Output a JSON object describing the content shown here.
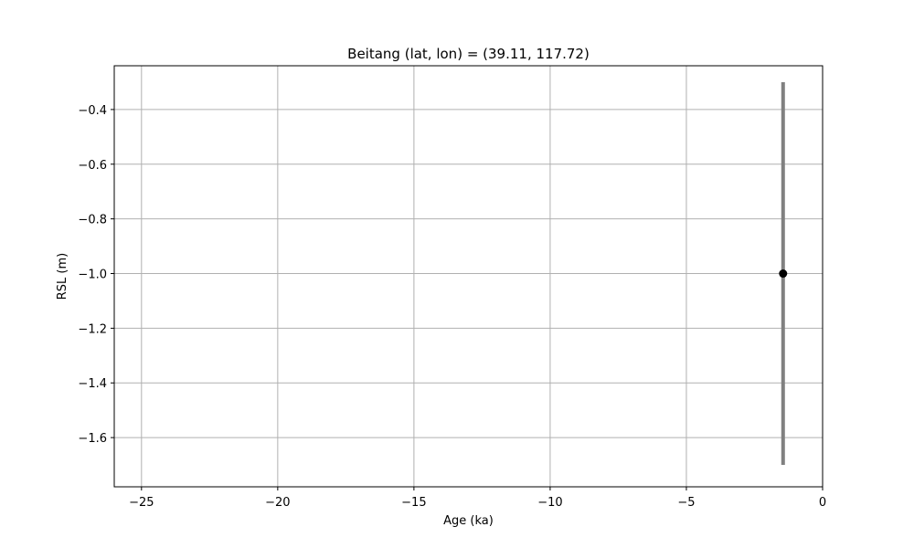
{
  "chart_data": {
    "type": "scatter",
    "title": "Beitang (lat, lon) = (39.11, 117.72)",
    "xlabel": "Age (ka)",
    "ylabel": "RSL (m)",
    "xlim": [
      -26,
      0
    ],
    "ylim": [
      -1.78,
      -0.24
    ],
    "grid": true,
    "x_ticks": [
      -25,
      -20,
      -15,
      -10,
      -5,
      0
    ],
    "x_tick_labels": [
      "−25",
      "−20",
      "−15",
      "−10",
      "−5",
      "0"
    ],
    "y_ticks": [
      -0.4,
      -0.6,
      -0.8,
      -1.0,
      -1.2,
      -1.4,
      -1.6
    ],
    "y_tick_labels": [
      "−0.4",
      "−0.6",
      "−0.8",
      "−1.0",
      "−1.2",
      "−1.4",
      "−1.6"
    ],
    "points": [
      {
        "x": -1.45,
        "y": -1.0,
        "y_low": -1.7,
        "y_high": -0.3
      }
    ],
    "colors": {
      "marker": "#000000",
      "errorbar": "#808080",
      "grid": "#b0b0b0",
      "axes": "#000000"
    }
  }
}
